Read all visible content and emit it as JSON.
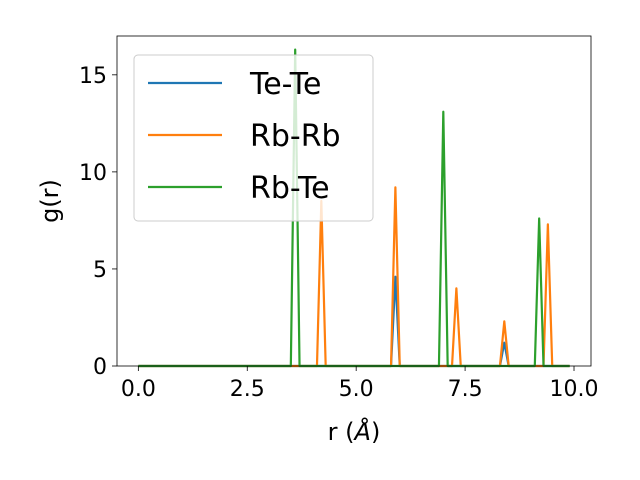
{
  "chart_data": {
    "type": "line",
    "title": "",
    "xlabel": "r (Å)",
    "ylabel": "g(r)",
    "xlim": [
      -0.49,
      10.39
    ],
    "ylim": [
      0,
      17
    ],
    "xticks": [
      "0.0",
      "2.5",
      "5.0",
      "7.5",
      "10.0"
    ],
    "yticks": [
      "0",
      "5",
      "10",
      "15"
    ],
    "grid": false,
    "legend_position": "upper-left",
    "series": [
      {
        "name": "Te-Te",
        "color": "#1f77b4",
        "x": [
          0.0,
          5.8,
          5.9,
          6.0,
          8.3,
          8.4,
          8.5,
          9.9
        ],
        "y": [
          0,
          0,
          4.6,
          0,
          0,
          1.2,
          0,
          0
        ]
      },
      {
        "name": "Rb-Rb",
        "color": "#ff7f0e",
        "x": [
          0.0,
          4.1,
          4.2,
          4.3,
          5.8,
          5.9,
          6.0,
          7.2,
          7.3,
          7.4,
          8.3,
          8.4,
          8.5,
          9.3,
          9.4,
          9.5,
          9.9
        ],
        "y": [
          0,
          0,
          8.5,
          0,
          0,
          9.2,
          0,
          0,
          4.0,
          0,
          0,
          2.3,
          0,
          0,
          7.3,
          0,
          0
        ]
      },
      {
        "name": "Rb-Te",
        "color": "#2ca02c",
        "x": [
          0.0,
          3.5,
          3.6,
          3.7,
          6.9,
          7.0,
          7.1,
          9.1,
          9.2,
          9.3,
          9.9
        ],
        "y": [
          0,
          0,
          16.3,
          0,
          0,
          13.1,
          0,
          0,
          7.6,
          0,
          0
        ]
      }
    ]
  }
}
